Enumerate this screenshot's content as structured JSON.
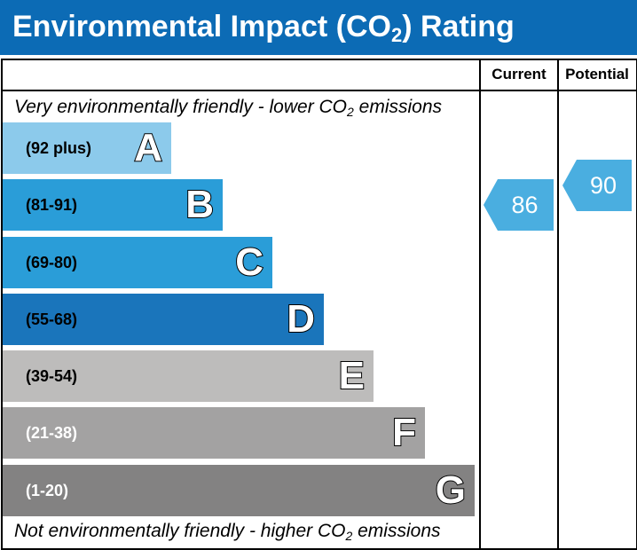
{
  "header": {
    "title_prefix": "Environmental Impact (CO",
    "title_sub": "2",
    "title_suffix": ") Rating",
    "background": "#0c6bb5"
  },
  "columns": {
    "current": "Current",
    "potential": "Potential"
  },
  "top_note": {
    "prefix": "Very environmentally friendly - lower CO",
    "sub": "2",
    "suffix": " emissions"
  },
  "bottom_note": {
    "prefix": "Not environmentally friendly - higher CO",
    "sub": "2",
    "suffix": " emissions"
  },
  "bands": [
    {
      "letter": "A",
      "range": "(92 plus)",
      "color": "#8ccaeb",
      "text_color": "#000000"
    },
    {
      "letter": "B",
      "range": "(81-91)",
      "color": "#2a9dd8",
      "text_color": "#000000"
    },
    {
      "letter": "C",
      "range": "(69-80)",
      "color": "#2a9dd8",
      "text_color": "#000000"
    },
    {
      "letter": "D",
      "range": "(55-68)",
      "color": "#1a75bb",
      "text_color": "#000000"
    },
    {
      "letter": "E",
      "range": "(39-54)",
      "color": "#bdbcbb",
      "text_color": "#000000"
    },
    {
      "letter": "F",
      "range": "(21-38)",
      "color": "#a3a2a2",
      "text_color": "#ffffff"
    },
    {
      "letter": "G",
      "range": "(1-20)",
      "color": "#838282",
      "text_color": "#ffffff"
    }
  ],
  "ratings": {
    "current": {
      "value": "86",
      "color": "#4aaee0"
    },
    "potential": {
      "value": "90",
      "color": "#4aaee0"
    }
  }
}
